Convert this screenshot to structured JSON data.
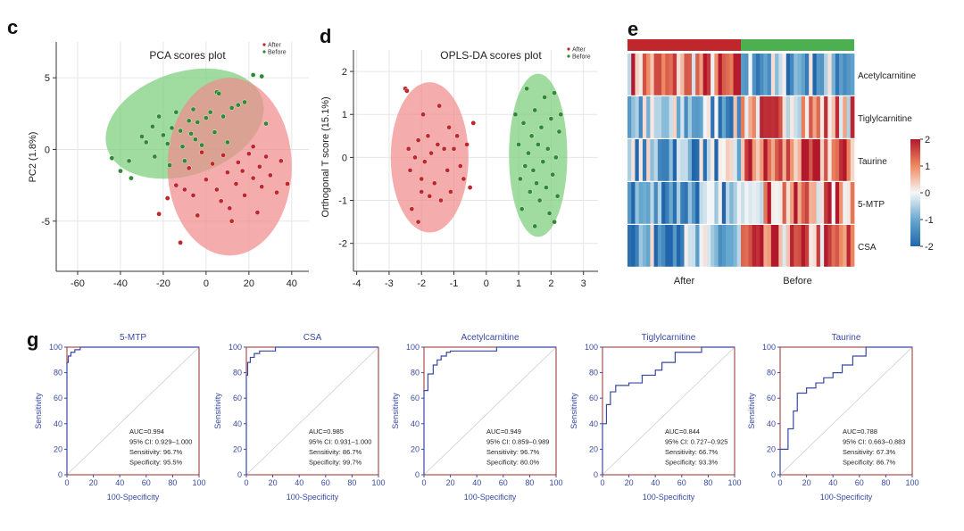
{
  "colors": {
    "after": "#c0272d",
    "before": "#2f8a35",
    "after_ellipse": "#f08c8c",
    "before_ellipse": "#7ccd7c",
    "roc_line": "#3a4aa0",
    "roc_frame": "#9b2d2d"
  },
  "panels": {
    "c": "c",
    "d": "d",
    "e": "e",
    "g": "g"
  },
  "chart_data": [
    {
      "type": "scatter",
      "panel": "c",
      "title": "PCA scores plot",
      "xlabel": "",
      "ylabel": "PC2 (1.8%)",
      "xlim": [
        -70,
        48
      ],
      "ylim": [
        -8.5,
        7.5
      ],
      "xticks": [
        "-60",
        "-40",
        "-20",
        "0",
        "20",
        "40"
      ],
      "yticks": [
        "5",
        "0",
        "-5"
      ],
      "legend": [
        "After",
        "Before"
      ],
      "ellipses": [
        {
          "group": "Before",
          "cx": -10,
          "cy": 1.8,
          "rx": 38,
          "ry": 3.6,
          "angle_deg": 18
        },
        {
          "group": "After",
          "cx": 11,
          "cy": -1.2,
          "rx": 29,
          "ry": 6.2,
          "angle_deg": 0
        }
      ],
      "series": [
        {
          "name": "Before",
          "points": [
            [
              -44,
              -0.6
            ],
            [
              -40,
              -1.5
            ],
            [
              -36,
              -0.8
            ],
            [
              -35,
              -2.0
            ],
            [
              -30,
              0.9
            ],
            [
              -28,
              0.5
            ],
            [
              -25,
              1.6
            ],
            [
              -24,
              -0.5
            ],
            [
              -22,
              2.3
            ],
            [
              -20,
              1.0
            ],
            [
              -18,
              0.4
            ],
            [
              -17,
              -1.1
            ],
            [
              -16,
              1.5
            ],
            [
              -14,
              2.6
            ],
            [
              -12,
              1.3
            ],
            [
              -11,
              0.2
            ],
            [
              -10,
              -0.8
            ],
            [
              -8,
              2.0
            ],
            [
              -7,
              1.1
            ],
            [
              -6,
              2.8
            ],
            [
              -5,
              0.7
            ],
            [
              -4,
              1.9
            ],
            [
              -2,
              0.3
            ],
            [
              0,
              2.2
            ],
            [
              2,
              2.6
            ],
            [
              4,
              1.2
            ],
            [
              5,
              4.0
            ],
            [
              6,
              3.9
            ],
            [
              8,
              2.3
            ],
            [
              10,
              0.5
            ],
            [
              12,
              2.9
            ],
            [
              15,
              3.1
            ],
            [
              18,
              3.3
            ],
            [
              22,
              5.2
            ],
            [
              26,
              5.1
            ],
            [
              28,
              1.8
            ]
          ]
        },
        {
          "name": "After",
          "points": [
            [
              -22,
              -4.5
            ],
            [
              -18,
              -3.4
            ],
            [
              -14,
              -2.5
            ],
            [
              -12,
              -6.5
            ],
            [
              -10,
              -2.8
            ],
            [
              -8,
              -1.3
            ],
            [
              -6,
              -3.2
            ],
            [
              -4,
              -4.6
            ],
            [
              -2,
              -0.2
            ],
            [
              0,
              -2.1
            ],
            [
              3,
              -1.0
            ],
            [
              5,
              -2.8
            ],
            [
              7,
              -3.6
            ],
            [
              8,
              -0.4
            ],
            [
              10,
              -1.6
            ],
            [
              11,
              -4.1
            ],
            [
              12,
              -5.0
            ],
            [
              14,
              -2.4
            ],
            [
              15,
              -0.9
            ],
            [
              17,
              -1.5
            ],
            [
              18,
              -3.2
            ],
            [
              20,
              -0.3
            ],
            [
              22,
              -2.0
            ],
            [
              24,
              -4.4
            ],
            [
              25,
              -1.2
            ],
            [
              26,
              -2.6
            ],
            [
              28,
              -0.5
            ],
            [
              30,
              -1.8
            ],
            [
              33,
              -3.0
            ],
            [
              35,
              -0.8
            ],
            [
              38,
              -2.4
            ],
            [
              22,
              0.2
            ]
          ]
        }
      ]
    },
    {
      "type": "scatter",
      "panel": "d",
      "title": "OPLS-DA scores plot",
      "xlabel": "",
      "ylabel": "Orthogonal T score (15.1%)",
      "xlim": [
        -4.1,
        3.45
      ],
      "ylim": [
        -2.65,
        2.5
      ],
      "xticks": [
        "-4",
        "-3",
        "-2",
        "-1",
        "0",
        "1",
        "2",
        "3"
      ],
      "yticks": [
        "2",
        "1",
        "0",
        "-1",
        "-2"
      ],
      "legend": [
        "After",
        "Before"
      ],
      "ellipses": [
        {
          "group": "After",
          "cx": -1.75,
          "cy": 0.0,
          "rx": 1.2,
          "ry": 1.75,
          "angle_deg": 0
        },
        {
          "group": "Before",
          "cx": 1.6,
          "cy": 0.05,
          "rx": 0.9,
          "ry": 1.9,
          "angle_deg": 0
        }
      ],
      "series": [
        {
          "name": "After",
          "points": [
            [
              -2.5,
              1.6
            ],
            [
              -2.45,
              1.55
            ],
            [
              -2.4,
              0.2
            ],
            [
              -2.35,
              -0.3
            ],
            [
              -2.3,
              -1.2
            ],
            [
              -2.2,
              0.0
            ],
            [
              -2.1,
              0.4
            ],
            [
              -2.0,
              -0.5
            ],
            [
              -1.95,
              1.0
            ],
            [
              -1.9,
              -0.1
            ],
            [
              -1.8,
              0.5
            ],
            [
              -1.75,
              -0.9
            ],
            [
              -1.7,
              0.1
            ],
            [
              -1.6,
              -0.6
            ],
            [
              -1.5,
              0.3
            ],
            [
              -1.45,
              1.2
            ],
            [
              -1.4,
              -1.0
            ],
            [
              -1.3,
              0.2
            ],
            [
              -1.2,
              -0.3
            ],
            [
              -1.15,
              0.7
            ],
            [
              -1.1,
              -0.8
            ],
            [
              -1.0,
              0.2
            ],
            [
              -0.9,
              0.5
            ],
            [
              -0.8,
              -0.2
            ],
            [
              -0.7,
              -0.5
            ],
            [
              -0.6,
              0.3
            ],
            [
              -0.5,
              -0.7
            ],
            [
              -2.1,
              -1.5
            ],
            [
              -2.0,
              -0.8
            ],
            [
              -0.4,
              0.8
            ]
          ]
        },
        {
          "name": "Before",
          "points": [
            [
              0.9,
              1.0
            ],
            [
              1.0,
              0.3
            ],
            [
              1.05,
              -0.5
            ],
            [
              1.1,
              -1.2
            ],
            [
              1.15,
              0.8
            ],
            [
              1.2,
              -0.2
            ],
            [
              1.25,
              1.6
            ],
            [
              1.3,
              0.1
            ],
            [
              1.35,
              -0.8
            ],
            [
              1.4,
              0.5
            ],
            [
              1.45,
              -0.3
            ],
            [
              1.5,
              1.1
            ],
            [
              1.55,
              -0.6
            ],
            [
              1.6,
              0.3
            ],
            [
              1.65,
              -1.0
            ],
            [
              1.7,
              0.7
            ],
            [
              1.75,
              -0.1
            ],
            [
              1.8,
              1.4
            ],
            [
              1.85,
              -0.7
            ],
            [
              1.9,
              0.2
            ],
            [
              1.95,
              -1.3
            ],
            [
              2.0,
              0.9
            ],
            [
              2.05,
              -0.4
            ],
            [
              2.1,
              1.5
            ],
            [
              2.15,
              0.0
            ],
            [
              2.2,
              -0.9
            ],
            [
              2.25,
              0.6
            ],
            [
              2.3,
              1.0
            ],
            [
              1.5,
              -1.6
            ],
            [
              2.1,
              -1.5
            ]
          ]
        }
      ]
    },
    {
      "type": "heatmap",
      "panel": "e",
      "rows": [
        "Acetylcarnitine",
        "Tiglylcarnitine",
        "Taurine",
        "5-MTP",
        "CSA"
      ],
      "column_groups": [
        {
          "label": "After",
          "count": 30
        },
        {
          "label": "Before",
          "count": 30
        }
      ],
      "colorbar": {
        "min": -2,
        "max": 2,
        "ticks": [
          "2",
          "1",
          "0",
          "-1",
          "-2"
        ]
      },
      "row_means": {
        "Acetylcarnitine": [
          0.9,
          -0.9
        ],
        "Tiglylcarnitine": [
          -0.8,
          0.8
        ],
        "Taurine": [
          -0.9,
          1.1
        ],
        "5-MTP": [
          -1.1,
          0.9
        ],
        "CSA": [
          -1.0,
          0.9
        ]
      }
    },
    {
      "type": "line",
      "panel": "g",
      "subtype": "roc",
      "charts": [
        {
          "title": "5-MTP",
          "xlabel": "100-Specificity",
          "ylabel": "Sensitivity",
          "x": [
            0,
            0,
            1,
            1,
            3,
            3,
            6,
            6,
            10,
            10,
            100
          ],
          "y": [
            0,
            88,
            88,
            93,
            93,
            96,
            96,
            98,
            98,
            100,
            100
          ],
          "stats": [
            "AUC=0.994",
            "95% CI: 0.929–1.000",
            "Sensitivity: 96.7%",
            "Specificity: 95.5%"
          ]
        },
        {
          "title": "CSA",
          "xlabel": "100-Specificity",
          "ylabel": "Sensitivity",
          "x": [
            0,
            0,
            1,
            1,
            3,
            3,
            6,
            6,
            10,
            10,
            22,
            22,
            100
          ],
          "y": [
            0,
            78,
            78,
            88,
            88,
            92,
            92,
            95,
            95,
            97,
            97,
            100,
            100
          ],
          "stats": [
            "AUC=0.985",
            "95% CI: 0.931–1.000",
            "Sensitivity: 86.7%",
            "Specificity: 99.7%"
          ]
        },
        {
          "title": "Acetylcarnitine",
          "xlabel": "100-Specificity",
          "ylabel": "Sensitivity",
          "x": [
            0,
            0,
            3,
            3,
            7,
            7,
            10,
            10,
            13,
            13,
            17,
            17,
            20,
            20,
            55,
            55,
            100
          ],
          "y": [
            0,
            66,
            66,
            79,
            79,
            86,
            86,
            90,
            90,
            93,
            93,
            96,
            96,
            97,
            97,
            100,
            100
          ],
          "stats": [
            "AUC=0.949",
            "95% CI: 0.859–0.989",
            "Sensitivity: 96.7%",
            "Specificity: 80.0%"
          ]
        },
        {
          "title": "Tiglylcarnitine",
          "xlabel": "100-Specificity",
          "ylabel": "Sensitivity",
          "x": [
            0,
            0,
            3,
            3,
            6,
            6,
            10,
            10,
            20,
            20,
            30,
            30,
            40,
            40,
            45,
            45,
            55,
            55,
            75,
            75,
            100
          ],
          "y": [
            0,
            40,
            40,
            55,
            55,
            65,
            65,
            70,
            70,
            72,
            72,
            78,
            78,
            82,
            82,
            88,
            88,
            96,
            96,
            100,
            100
          ],
          "stats": [
            "AUC=0.844",
            "95% CI: 0.727–0.925",
            "Sensitivity: 66.7%",
            "Specificity: 93.3%"
          ]
        },
        {
          "title": "Taurine",
          "xlabel": "100-Specificity",
          "ylabel": "Sensitivity",
          "x": [
            0,
            0,
            6,
            6,
            10,
            10,
            13,
            13,
            20,
            20,
            27,
            27,
            33,
            33,
            40,
            40,
            47,
            47,
            55,
            55,
            65,
            65,
            100
          ],
          "y": [
            0,
            20,
            20,
            36,
            36,
            50,
            50,
            64,
            64,
            68,
            68,
            72,
            72,
            76,
            76,
            80,
            80,
            86,
            86,
            93,
            93,
            100,
            100
          ],
          "stats": [
            "AUC=0.788",
            "95% CI: 0.663–0.883",
            "Sensitivity: 67.3%",
            "Specificity: 86.7%"
          ]
        }
      ]
    }
  ]
}
